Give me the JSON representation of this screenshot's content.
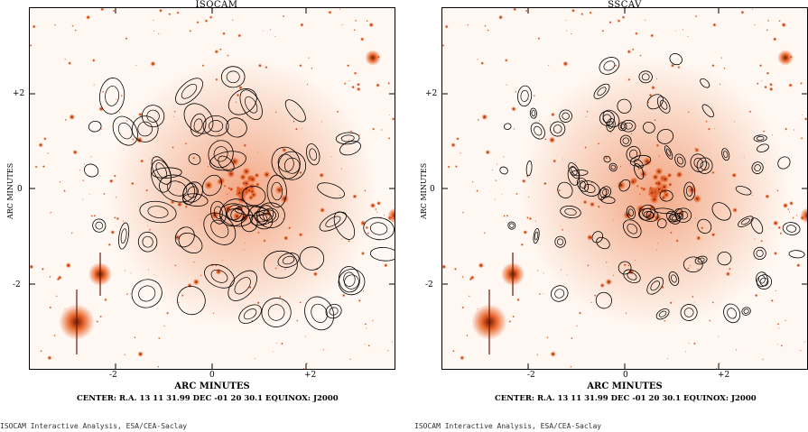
{
  "left_panel": {
    "title": "ISOCAM",
    "y_axis_label": "ARC MINUTES",
    "x_axis_label": "ARC MINUTES",
    "x_ticks": [
      "-2",
      "0",
      "+2"
    ],
    "y_ticks": [
      "+2",
      "0",
      "-2"
    ],
    "center_text": "CENTER: R.A. 13 11 31.99 DEC -01 20 30.1  EQUINOX: J2000",
    "footer": "ISOCAM Interactive Analysis, ESA/CEA-Saclay"
  },
  "right_panel": {
    "title": "SSCAV",
    "y_axis_label": "ARC MINUTES",
    "x_axis_label": "ARC MINUTES",
    "x_ticks": [
      "-2",
      "0",
      "+2"
    ],
    "y_ticks": [
      "+2",
      "0",
      "-2"
    ],
    "center_text": "CENTER: R.A. 13 11 31.99 DEC -01 20 30.1  EQUINOX: J2000",
    "footer": "ISOCAM Interactive Analysis, ESA/CEA-Saclay"
  },
  "colors": {
    "sky": "#fff8f2",
    "emission": "#e8642a",
    "core": "#6b1a05",
    "contour": "#000000"
  }
}
